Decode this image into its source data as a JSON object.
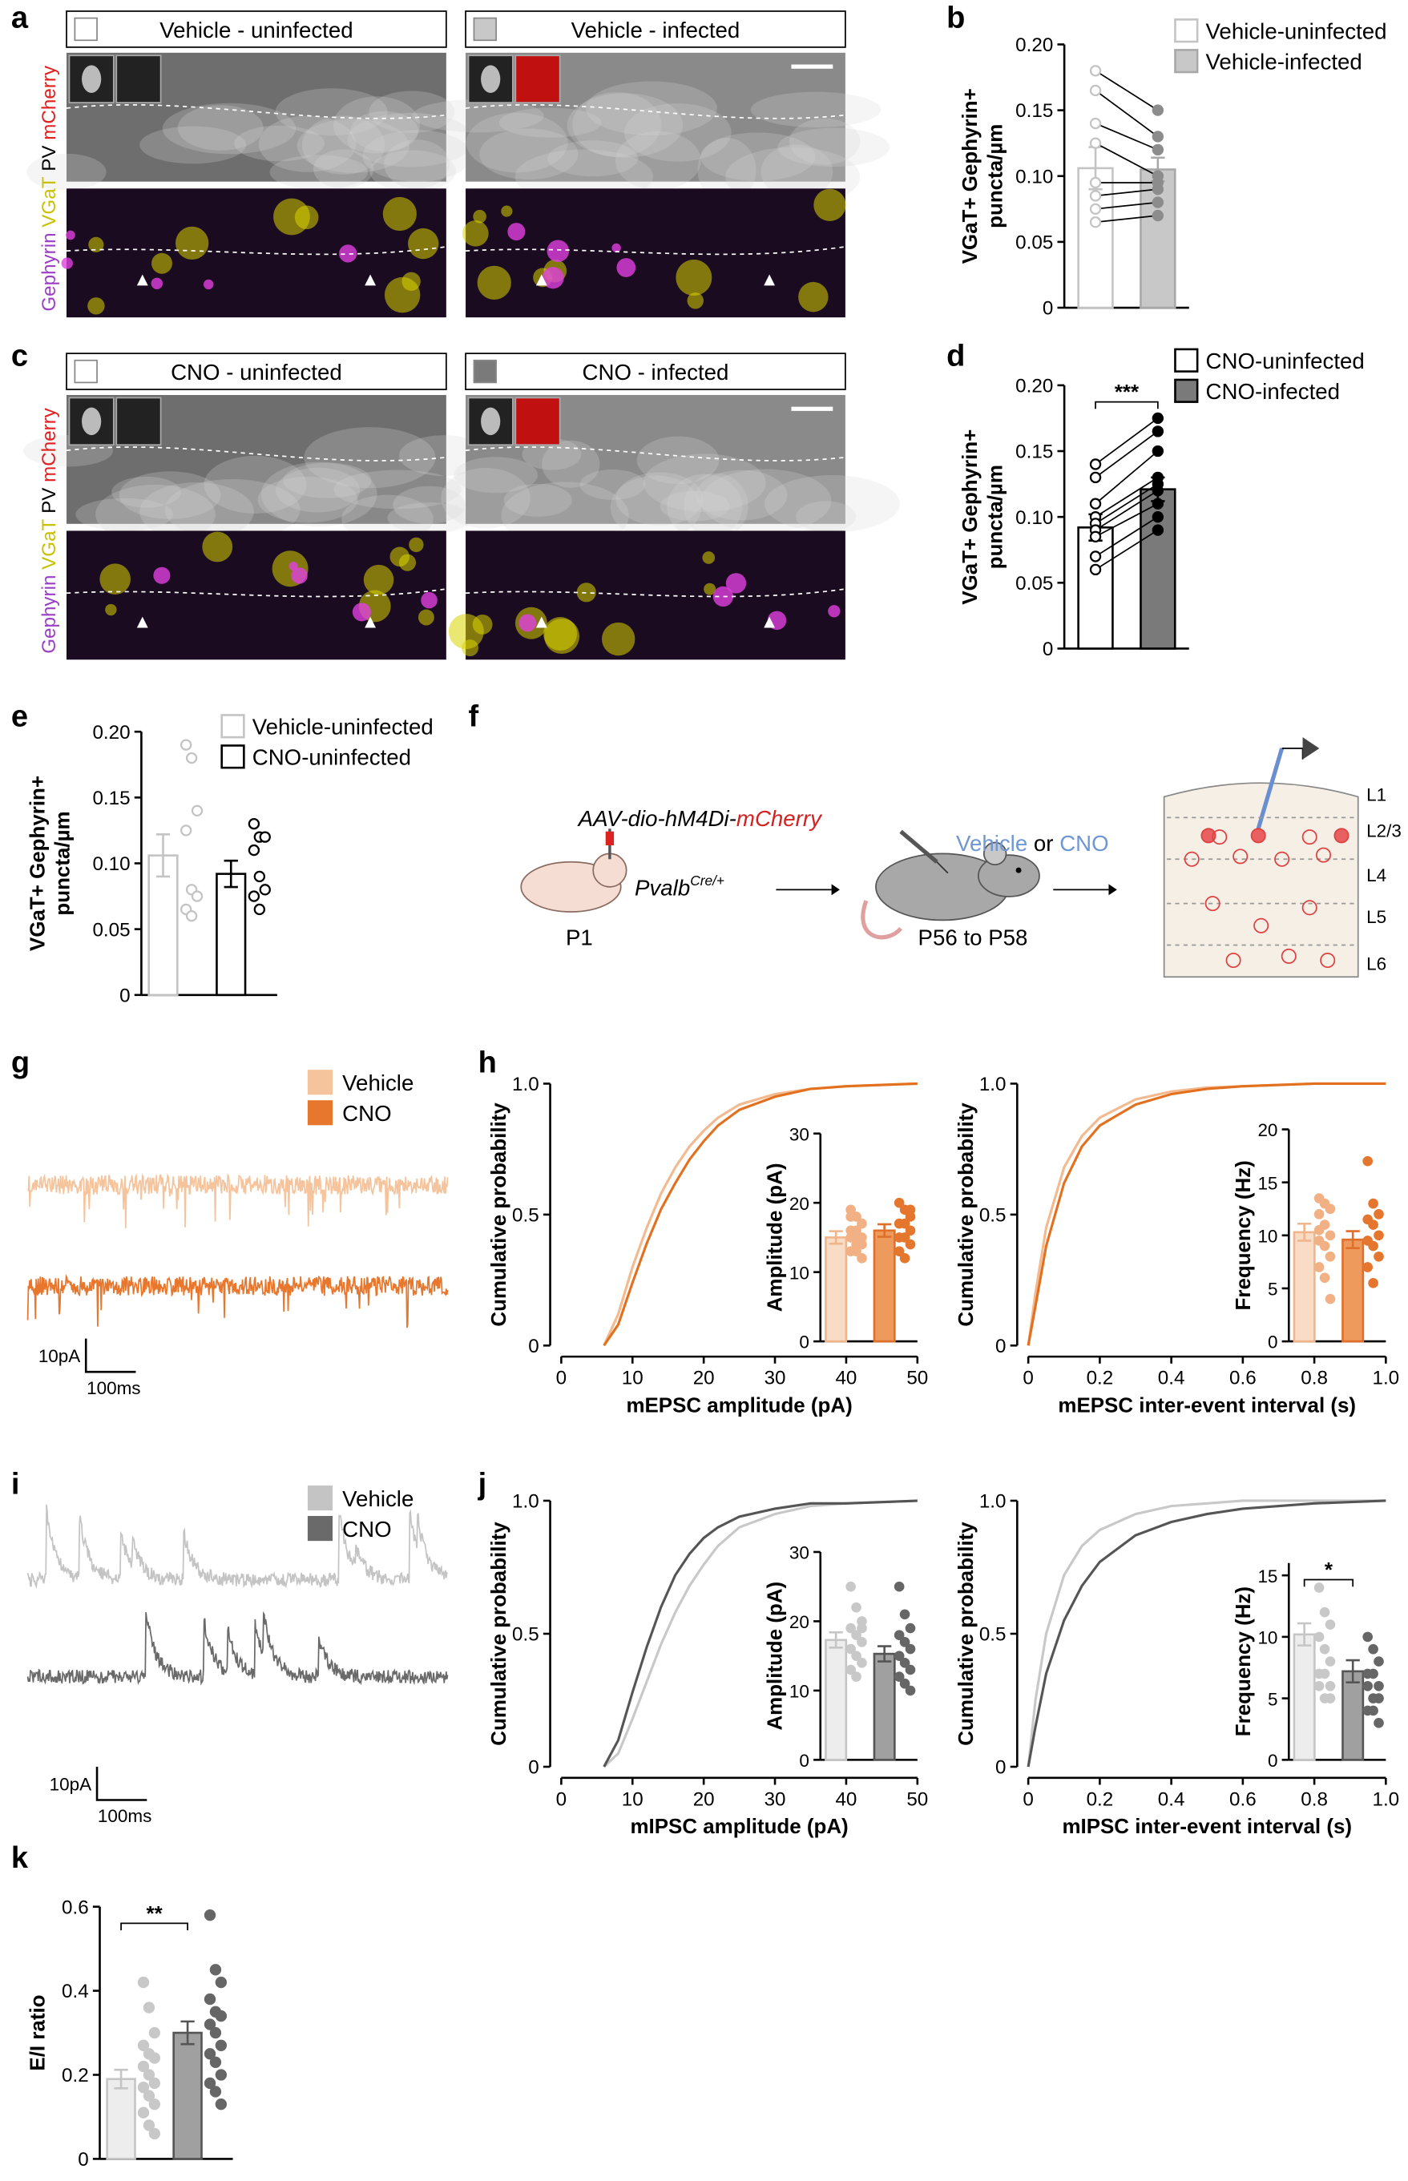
{
  "panel_labels": [
    "a",
    "b",
    "c",
    "d",
    "e",
    "f",
    "g",
    "h",
    "i",
    "j",
    "k"
  ],
  "stains": [
    "Gephyrin",
    "VGaT",
    "PV",
    "mCherry"
  ],
  "micrographs": [
    {
      "panels": [
        "Vehicle - uninfected",
        "Vehicle - infected"
      ]
    },
    {
      "panels": [
        "CNO - uninfected",
        "CNO - infected"
      ]
    }
  ],
  "schematic": {
    "virus": [
      "AAV-dio-hM4Di-",
      "mCherry"
    ],
    "line": "Pvalb",
    "genotype": "Cre/+",
    "age_injection": "P1",
    "treatment": [
      "Vehicle",
      "or",
      "CNO"
    ],
    "age_treatment": "P56 to P58",
    "layers": [
      "L1",
      "L2/3",
      "L4",
      "L5",
      "L6"
    ]
  },
  "chart_data": [
    {
      "type": "bar",
      "ylabel": [
        "VGaT+ Gephyrin+",
        "puncta/µm"
      ],
      "ylim": [
        0,
        0.2
      ],
      "yticks": [
        0,
        0.05,
        {
          "value": 0.1,
          "label": "0.10"
        },
        0.15,
        {
          "value": 0.2,
          "label": "0.20"
        }
      ],
      "point_layout": "paired",
      "series": [
        {
          "name": "Vehicle-uninfected",
          "color": "#ffffff",
          "edge": "#c4c4c4",
          "point_color": "#c4c4c4",
          "open_points": true,
          "values": [
            0.106
          ],
          "errors": [
            0.016
          ],
          "points": [
            0.18,
            0.165,
            0.14,
            0.125,
            0.095,
            0.085,
            0.075,
            0.065
          ]
        },
        {
          "name": "Vehicle-infected",
          "color": "#c8c8c8",
          "edge": "#a8a8a8",
          "point_color": "#8c8c8c",
          "open_points": false,
          "values": [
            0.105
          ],
          "errors": [
            0.009
          ],
          "points": [
            0.15,
            0.13,
            0.12,
            0.1,
            0.095,
            0.09,
            0.08,
            0.07
          ]
        }
      ]
    },
    {
      "type": "bar",
      "ylabel": [
        "VGaT+ Gephyrin+",
        "puncta/µm"
      ],
      "ylim": [
        0,
        0.2
      ],
      "yticks": [
        0,
        0.05,
        {
          "value": 0.1,
          "label": "0.10"
        },
        0.15,
        {
          "value": 0.2,
          "label": "0.20"
        }
      ],
      "point_layout": "paired",
      "significance": "***",
      "series": [
        {
          "name": "CNO-uninfected",
          "color": "#ffffff",
          "edge": "#000000",
          "point_color": "#000000",
          "open_points": true,
          "values": [
            0.092
          ],
          "errors": [
            0.01
          ],
          "points": [
            0.14,
            0.13,
            0.11,
            0.1,
            0.095,
            0.09,
            0.085,
            0.07,
            0.06
          ]
        },
        {
          "name": "CNO-infected",
          "color": "#7a7a7a",
          "edge": "#000000",
          "point_color": "#000000",
          "open_points": false,
          "values": [
            0.121
          ],
          "errors": [
            0.009
          ],
          "points": [
            0.175,
            0.165,
            0.15,
            0.13,
            0.125,
            0.12,
            0.11,
            0.1,
            0.09
          ]
        }
      ]
    },
    {
      "type": "bar",
      "ylabel": [
        "VGaT+ Gephyrin+",
        "puncta/µm"
      ],
      "ylim": [
        0,
        0.2
      ],
      "yticks": [
        0,
        0.05,
        {
          "value": 0.1,
          "label": "0.10"
        },
        0.15,
        {
          "value": 0.2,
          "label": "0.20"
        }
      ],
      "point_layout": "beside",
      "series": [
        {
          "name": "Vehicle-uninfected",
          "color": "#ffffff",
          "edge": "#c4c4c4",
          "point_color": "#c4c4c4",
          "open_points": true,
          "values": [
            0.106
          ],
          "errors": [
            0.016
          ],
          "points": [
            0.19,
            0.18,
            0.14,
            0.125,
            0.08,
            0.075,
            0.065,
            0.06
          ]
        },
        {
          "name": "CNO-uninfected",
          "color": "#ffffff",
          "edge": "#000000",
          "point_color": "#000000",
          "open_points": true,
          "values": [
            0.092
          ],
          "errors": [
            0.01
          ],
          "points": [
            0.13,
            0.12,
            0.12,
            0.11,
            0.09,
            0.08,
            0.075,
            0.065
          ]
        }
      ]
    },
    {
      "type": "trace",
      "mode": "epsc",
      "series": [
        {
          "name": "Vehicle",
          "color": "#f5c49c"
        },
        {
          "name": "CNO",
          "color": "#e8772e"
        }
      ],
      "scalebar": [
        "10pA",
        "100ms"
      ]
    },
    {
      "type": "line",
      "xlabel": "mEPSC amplitude (pA)",
      "ylabel": "Cumulative probability",
      "x": [
        6,
        8,
        10,
        12,
        14,
        16,
        18,
        20,
        22,
        25,
        30,
        35,
        40,
        50
      ],
      "xlim": [
        0,
        50
      ],
      "xticks": [
        0,
        10,
        20,
        30,
        40,
        50
      ],
      "ylim": [
        0,
        1
      ],
      "yticks": [
        0,
        0.5,
        {
          "value": 1,
          "label": "1.0"
        }
      ],
      "series": [
        {
          "color": "#f3b98f",
          "values": [
            0,
            0.12,
            0.3,
            0.45,
            0.58,
            0.68,
            0.76,
            0.82,
            0.87,
            0.92,
            0.96,
            0.98,
            0.99,
            1
          ]
        },
        {
          "color": "#e2701f",
          "values": [
            0,
            0.08,
            0.24,
            0.39,
            0.52,
            0.62,
            0.71,
            0.78,
            0.84,
            0.9,
            0.95,
            0.98,
            0.99,
            1
          ]
        }
      ]
    },
    {
      "type": "bar",
      "ylabel": [
        "Amplitude (pA)"
      ],
      "ylim": [
        0,
        30
      ],
      "yticks": [
        0,
        10,
        20,
        30
      ],
      "point_layout": "beside",
      "series": [
        {
          "color": "#f9dcc6",
          "edge": "#f0b58a",
          "point_color": "#f2b184",
          "open_points": false,
          "values": [
            15
          ],
          "errors": [
            0.9
          ],
          "points": [
            19,
            18,
            17,
            16,
            16,
            15,
            15,
            14,
            14,
            13,
            13,
            12,
            18,
            15
          ]
        },
        {
          "color": "#ee9a5c",
          "edge": "#e06f2a",
          "point_color": "#e5762e",
          "open_points": false,
          "values": [
            16
          ],
          "errors": [
            0.9
          ],
          "points": [
            20,
            19,
            18,
            17,
            17,
            16,
            15,
            15,
            14,
            13,
            12,
            19
          ]
        }
      ]
    },
    {
      "type": "line",
      "xlabel": "mEPSC inter-event interval (s)",
      "ylabel": "Cumulative probability",
      "x": [
        0,
        0.02,
        0.05,
        0.1,
        0.15,
        0.2,
        0.3,
        0.4,
        0.5,
        0.6,
        0.8,
        1
      ],
      "xlim": [
        0,
        1
      ],
      "xticks": [
        0,
        0.2,
        0.4,
        0.6,
        0.8,
        {
          "value": 1,
          "label": "1.0"
        }
      ],
      "ylim": [
        0,
        1
      ],
      "yticks": [
        0,
        0.5,
        {
          "value": 1,
          "label": "1.0"
        }
      ],
      "series": [
        {
          "color": "#f3b98f",
          "values": [
            0,
            0.2,
            0.45,
            0.68,
            0.8,
            0.87,
            0.94,
            0.97,
            0.985,
            0.99,
            1,
            1
          ]
        },
        {
          "color": "#e2701f",
          "values": [
            0,
            0.15,
            0.38,
            0.62,
            0.76,
            0.84,
            0.92,
            0.96,
            0.98,
            0.99,
            1,
            1
          ]
        }
      ]
    },
    {
      "type": "bar",
      "ylabel": [
        "Frequency (Hz)"
      ],
      "ylim": [
        0,
        20
      ],
      "yticks": [
        0,
        5,
        10,
        15,
        20
      ],
      "point_layout": "beside",
      "series": [
        {
          "color": "#f9dcc6",
          "edge": "#f0b58a",
          "point_color": "#f2b184",
          "open_points": false,
          "values": [
            10.3
          ],
          "errors": [
            0.8
          ],
          "points": [
            13.5,
            13,
            12.5,
            12,
            11,
            10,
            9.5,
            9,
            8,
            7,
            6,
            4,
            10.5
          ]
        },
        {
          "color": "#ee9a5c",
          "edge": "#e06f2a",
          "point_color": "#e5762e",
          "open_points": false,
          "values": [
            9.6
          ],
          "errors": [
            0.8
          ],
          "points": [
            17,
            13,
            12,
            11.5,
            11,
            10,
            9.5,
            9,
            8,
            7,
            5.5
          ]
        }
      ]
    },
    {
      "type": "trace",
      "mode": "ipsc",
      "series": [
        {
          "name": "Vehicle",
          "color": "#c4c4c4"
        },
        {
          "name": "CNO",
          "color": "#6a6a6a"
        }
      ],
      "scalebar": [
        "10pA",
        "100ms"
      ]
    },
    {
      "type": "line",
      "xlabel": "mIPSC amplitude (pA)",
      "ylabel": "Cumulative probability",
      "x": [
        6,
        8,
        10,
        12,
        14,
        16,
        18,
        20,
        22,
        25,
        30,
        35,
        40,
        50
      ],
      "xlim": [
        0,
        50
      ],
      "xticks": [
        0,
        10,
        20,
        30,
        40,
        50
      ],
      "ylim": [
        0,
        1
      ],
      "yticks": [
        0,
        0.5,
        {
          "value": 1,
          "label": "1.0"
        }
      ],
      "series": [
        {
          "color": "#c8c8c8",
          "values": [
            0,
            0.05,
            0.18,
            0.32,
            0.46,
            0.58,
            0.68,
            0.76,
            0.83,
            0.9,
            0.95,
            0.98,
            0.99,
            1
          ]
        },
        {
          "color": "#555555",
          "values": [
            0,
            0.1,
            0.28,
            0.45,
            0.6,
            0.72,
            0.8,
            0.86,
            0.9,
            0.94,
            0.97,
            0.99,
            0.99,
            1
          ]
        }
      ]
    },
    {
      "type": "bar",
      "ylabel": [
        "Amplitude (pA)"
      ],
      "ylim": [
        0,
        30
      ],
      "yticks": [
        0,
        10,
        20,
        30
      ],
      "point_layout": "beside",
      "series": [
        {
          "color": "#ededed",
          "edge": "#c5c5c5",
          "point_color": "#c8c8c8",
          "open_points": false,
          "values": [
            17.3
          ],
          "errors": [
            1.1
          ],
          "points": [
            25,
            22,
            20,
            19,
            18,
            17,
            16,
            15,
            14,
            13,
            12,
            19
          ]
        },
        {
          "color": "#a0a0a0",
          "edge": "#555555",
          "point_color": "#666666",
          "open_points": false,
          "values": [
            15.3
          ],
          "errors": [
            1.1
          ],
          "points": [
            25,
            21,
            19,
            18,
            17,
            16,
            15,
            14,
            13,
            12,
            11,
            10
          ]
        }
      ]
    },
    {
      "type": "line",
      "xlabel": "mIPSC inter-event interval (s)",
      "ylabel": "Cumulative probability",
      "x": [
        0,
        0.02,
        0.05,
        0.1,
        0.15,
        0.2,
        0.3,
        0.4,
        0.5,
        0.6,
        0.8,
        1
      ],
      "xlim": [
        0,
        1
      ],
      "xticks": [
        0,
        0.2,
        0.4,
        0.6,
        0.8,
        {
          "value": 1,
          "label": "1.0"
        }
      ],
      "ylim": [
        0,
        1
      ],
      "yticks": [
        0,
        0.5,
        {
          "value": 1,
          "label": "1.0"
        }
      ],
      "series": [
        {
          "color": "#c8c8c8",
          "values": [
            0,
            0.25,
            0.5,
            0.72,
            0.83,
            0.89,
            0.95,
            0.98,
            0.99,
            1,
            1,
            1
          ]
        },
        {
          "color": "#555555",
          "values": [
            0,
            0.15,
            0.35,
            0.55,
            0.68,
            0.77,
            0.87,
            0.92,
            0.95,
            0.97,
            0.99,
            1
          ]
        }
      ]
    },
    {
      "type": "bar",
      "ylabel": [
        "Frequency (Hz)"
      ],
      "ylim": [
        0,
        16
      ],
      "yticks": [
        0,
        5,
        10,
        15
      ],
      "point_layout": "beside",
      "significance": "*",
      "series": [
        {
          "color": "#ededed",
          "edge": "#c5c5c5",
          "point_color": "#c8c8c8",
          "open_points": false,
          "values": [
            10.2
          ],
          "errors": [
            0.9
          ],
          "points": [
            14,
            12,
            11,
            10,
            9,
            8,
            7,
            7,
            6,
            6,
            5,
            5
          ]
        },
        {
          "color": "#a0a0a0",
          "edge": "#555555",
          "point_color": "#666666",
          "open_points": false,
          "values": [
            7.2
          ],
          "errors": [
            0.9
          ],
          "points": [
            10,
            9,
            8,
            7,
            7,
            6,
            6,
            5,
            5,
            4,
            4,
            3
          ]
        }
      ]
    },
    {
      "type": "bar",
      "ylabel": [
        "E/I ratio"
      ],
      "ylim": [
        0,
        0.6
      ],
      "yticks": [
        0,
        0.2,
        0.4,
        0.6
      ],
      "point_layout": "beside",
      "significance": "**",
      "series": [
        {
          "color": "#ededed",
          "edge": "#c5c5c5",
          "point_color": "#c8c8c8",
          "open_points": false,
          "values": [
            0.19
          ],
          "errors": [
            0.022
          ],
          "points": [
            0.42,
            0.36,
            0.3,
            0.27,
            0.25,
            0.24,
            0.22,
            0.2,
            0.18,
            0.17,
            0.15,
            0.13,
            0.11,
            0.08,
            0.06
          ]
        },
        {
          "color": "#a0a0a0",
          "edge": "#555555",
          "point_color": "#666666",
          "open_points": false,
          "values": [
            0.3
          ],
          "errors": [
            0.027
          ],
          "points": [
            0.58,
            0.45,
            0.42,
            0.38,
            0.35,
            0.34,
            0.32,
            0.3,
            0.27,
            0.25,
            0.23,
            0.2,
            0.18,
            0.16,
            0.13
          ]
        }
      ]
    }
  ]
}
